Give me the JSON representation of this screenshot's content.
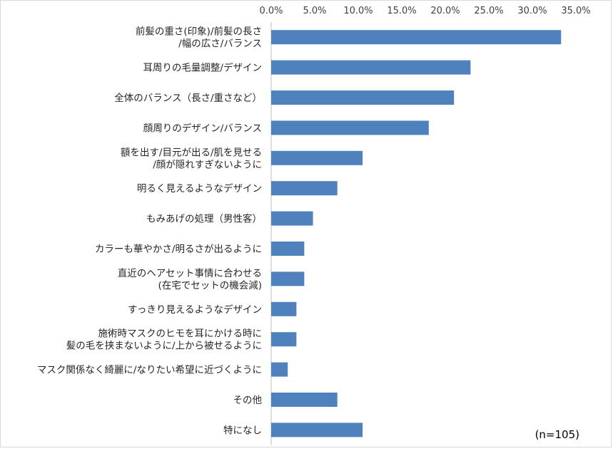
{
  "chart_data": {
    "type": "bar",
    "orientation": "horizontal",
    "title": "",
    "xlabel": "",
    "ylabel": "",
    "xlim": [
      0,
      35
    ],
    "x_ticks": [
      "0.0%",
      "5.0%",
      "10.0%",
      "15.0%",
      "20.0%",
      "25.0%",
      "30.0%",
      "35.0%"
    ],
    "x_axis_position": "top",
    "grid": false,
    "bar_color": "#4f81bd",
    "categories": [
      [
        "前髪の重さ(印象)/前髪の長さ",
        "/幅の広さ/バランス"
      ],
      [
        "耳周りの毛量調整/デザイン"
      ],
      [
        "全体のバランス（長さ/重さなど）"
      ],
      [
        "顔周りのデザイン/バランス"
      ],
      [
        "額を出す/目元が出る/肌を見せる",
        "/顔が隠れすぎないように"
      ],
      [
        "明るく見えるようなデザイン"
      ],
      [
        "もみあげの処理（男性客）"
      ],
      [
        "カラーも華やかさ/明るさが出るように"
      ],
      [
        "直近のヘアセット事情に合わせる",
        "(在宅でセットの機会減)"
      ],
      [
        "すっきり見えるようなデザイン"
      ],
      [
        "施術時マスクのヒモを耳にかける時に",
        "髪の毛を挟まないように/上から被せるように"
      ],
      [
        "マスク関係なく綺麗に/なりたい希望に近づくように"
      ],
      [
        "その他"
      ],
      [
        "特になし"
      ]
    ],
    "values": [
      33.3,
      22.9,
      21.0,
      18.1,
      10.5,
      7.6,
      4.8,
      3.8,
      3.8,
      2.9,
      2.9,
      1.9,
      7.6,
      10.5
    ],
    "note": "(n=105)"
  }
}
